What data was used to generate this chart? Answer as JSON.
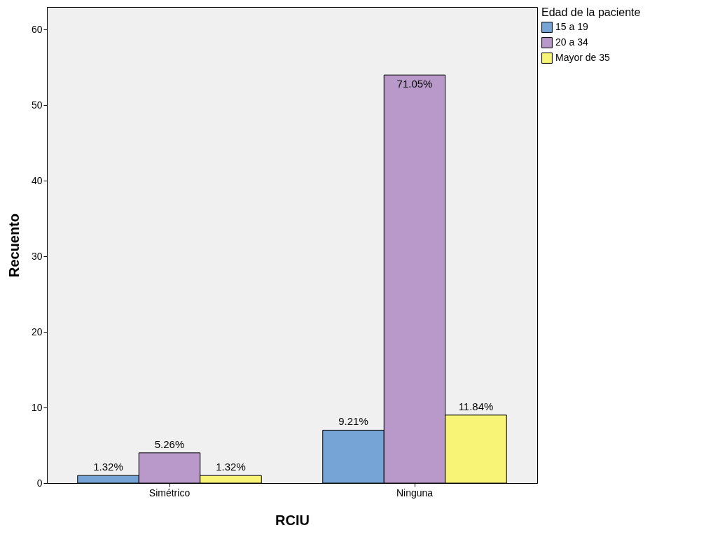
{
  "chart_data": {
    "type": "bar",
    "xlabel": "RCIU",
    "ylabel": "Recuento",
    "legend_title": "Edad de la paciente",
    "categories": [
      "Simétrico",
      "Ninguna"
    ],
    "series": [
      {
        "name": "15 a 19",
        "color": "#77a4d6",
        "values": [
          1,
          7
        ]
      },
      {
        "name": "20 a 34",
        "color": "#b899c9",
        "values": [
          4,
          54
        ]
      },
      {
        "name": "Mayor de 35",
        "color": "#f8f576",
        "values": [
          1,
          9
        ]
      }
    ],
    "annotations": [
      "1.32%",
      "5.26%",
      "1.32%",
      "9.21%",
      "71.05%",
      "11.84%"
    ],
    "ylim": [
      0,
      63
    ],
    "yticks": [
      0,
      10,
      20,
      30,
      40,
      50,
      60
    ],
    "legend": "top right"
  }
}
